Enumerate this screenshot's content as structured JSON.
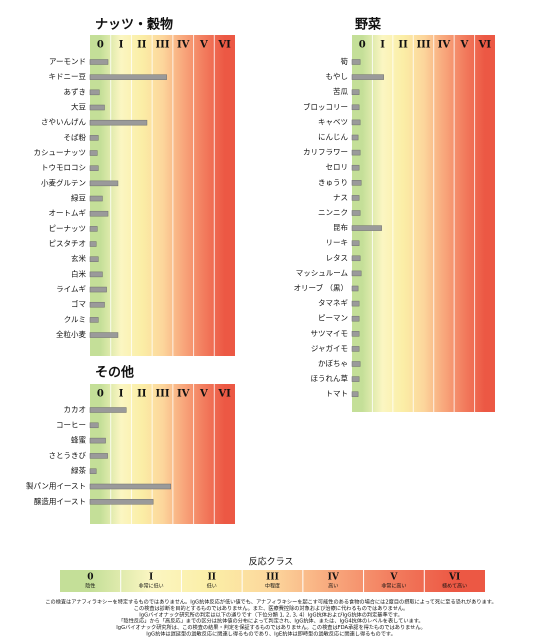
{
  "chart_data": [
    {
      "type": "bar",
      "orientation": "horizontal",
      "title": "ナッツ・穀物",
      "categories": [
        "アーモンド",
        "キドニー豆",
        "あずき",
        "大豆",
        "さやいんげん",
        "そば粉",
        "カシューナッツ",
        "トウモロコシ",
        "小麦グルテン",
        "緑豆",
        "オートムギ",
        "ピーナッツ",
        "ピスタチオ",
        "玄米",
        "白米",
        "ライムギ",
        "ゴマ",
        "クルミ",
        "全粒小麦"
      ],
      "values": [
        0.87,
        3.7,
        0.45,
        0.7,
        2.75,
        0.4,
        0.35,
        0.4,
        1.35,
        0.6,
        0.87,
        0.35,
        0.3,
        0.4,
        0.6,
        0.8,
        0.7,
        0.4,
        1.35
      ],
      "color": "#9a9a9a",
      "xlim": [
        0,
        7
      ],
      "xticks": [
        {
          "value": 0.5,
          "label": "0"
        },
        {
          "value": 1.5,
          "label": "I"
        },
        {
          "value": 2.5,
          "label": "II"
        },
        {
          "value": 3.5,
          "label": "III"
        },
        {
          "value": 4.5,
          "label": "IV"
        },
        {
          "value": 5.5,
          "label": "V"
        },
        {
          "value": 6.5,
          "label": "VI"
        }
      ]
    },
    {
      "type": "bar",
      "orientation": "horizontal",
      "title": "野菜",
      "categories": [
        "筍",
        "もやし",
        "苦瓜",
        "ブロッコリー",
        "キャベツ",
        "にんじん",
        "カリフラワー",
        "セロリ",
        "きゅうり",
        "ナス",
        "ニンニク",
        "昆布",
        "リーキ",
        "レタス",
        "マッシュルーム",
        "オリーブ （黒）",
        "タマネギ",
        "ピーマン",
        "サツマイモ",
        "ジャガイモ",
        "かぼちゃ",
        "ほうれん草",
        "トマト"
      ],
      "values": [
        0.4,
        1.55,
        0.35,
        0.35,
        0.4,
        0.3,
        0.4,
        0.35,
        0.45,
        0.35,
        0.4,
        1.45,
        0.35,
        0.4,
        0.45,
        0.3,
        0.35,
        0.35,
        0.35,
        0.35,
        0.4,
        0.35,
        0.3
      ],
      "color": "#9a9a9a",
      "xlim": [
        0,
        7
      ],
      "xticks": [
        {
          "value": 0.5,
          "label": "0"
        },
        {
          "value": 1.5,
          "label": "I"
        },
        {
          "value": 2.5,
          "label": "II"
        },
        {
          "value": 3.5,
          "label": "III"
        },
        {
          "value": 4.5,
          "label": "IV"
        },
        {
          "value": 5.5,
          "label": "V"
        },
        {
          "value": 6.5,
          "label": "VI"
        }
      ]
    },
    {
      "type": "bar",
      "orientation": "horizontal",
      "title": "その他",
      "categories": [
        "カカオ",
        "コーヒー",
        "蜂蜜",
        "さとうきび",
        "緑茶",
        "製パン用イースト",
        "醸造用イースト"
      ],
      "values": [
        1.75,
        0.4,
        0.75,
        0.85,
        0.3,
        3.9,
        3.05
      ],
      "color": "#9a9a9a",
      "xlim": [
        0,
        7
      ],
      "xticks": [
        {
          "value": 0.5,
          "label": "0"
        },
        {
          "value": 1.5,
          "label": "I"
        },
        {
          "value": 2.5,
          "label": "II"
        },
        {
          "value": 3.5,
          "label": "III"
        },
        {
          "value": 4.5,
          "label": "IV"
        },
        {
          "value": 5.5,
          "label": "V"
        },
        {
          "value": 6.5,
          "label": "VI"
        }
      ]
    }
  ],
  "class_colors": [
    "#c4df98",
    "#fbf6c2",
    "#fbeea6",
    "#fcd69c",
    "#f8a77c",
    "#f27c5e",
    "#ec5844"
  ],
  "tick_colors": [
    "#5fa327",
    "#e6cf3f",
    "#e0bd2c",
    "#ef9f1d",
    "#fff4ee",
    "#fff4ee",
    "#fff4ee"
  ],
  "legend": {
    "title": "反応クラス",
    "classes": [
      {
        "label": "0",
        "description": "陰性"
      },
      {
        "label": "I",
        "description": "非常に低い"
      },
      {
        "label": "II",
        "description": "低い"
      },
      {
        "label": "III",
        "description": "中程度"
      },
      {
        "label": "IV",
        "description": "高い"
      },
      {
        "label": "V",
        "description": "非常に高い"
      },
      {
        "label": "VI",
        "description": "極めて高い"
      }
    ],
    "label_colors": [
      "#3e8a1e",
      "#d6b81c",
      "#d6a91c",
      "#e38a12",
      "#c0321c",
      "#c0321c",
      "#b0201a"
    ]
  },
  "notes": [
    "この検査はアナフィラキシーを特定するものではありません。IgG抗体反応が低い値でも、アナフィラキシーを起こす可能性のある食物の場合には2度目の摂取によって死に至る恐れがあります。",
    "この検査は診断を目的とするものではありません。また、医療費控除の対象および治療に代わるものではありません。",
    "IgGバイオナック研究所の判定は以下の通りです（下位分類 1, 2, 3, 4）IgG抗体およびIgG抗体の判定基準です。",
    "「陰性反応」から「高反応」までの区分は抗体値の分布によって判定され、IgG抗体、または、IgG4抗体のレベルを表しています。",
    "IgGバイオナック研究所は、この検査の結果・判定を保証するものではありません。この検査はFDA承認を得たものではありません。",
    "IgG抗体は遅延型の過敏反応に関連し得るものであり、IgE抗体は即時型の過敏反応に関連し得るものです。"
  ]
}
